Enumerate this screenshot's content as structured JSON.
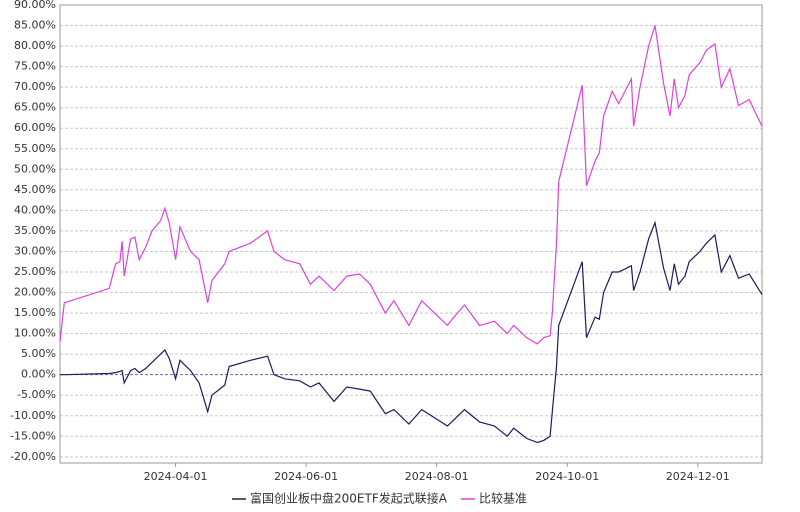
{
  "chart_data": {
    "type": "line",
    "x": [
      "2024-02-07",
      "2024-02-09",
      "2024-03-01",
      "2024-03-04",
      "2024-03-06",
      "2024-03-07",
      "2024-03-08",
      "2024-03-11",
      "2024-03-13",
      "2024-03-15",
      "2024-03-18",
      "2024-03-21",
      "2024-03-25",
      "2024-03-27",
      "2024-03-29",
      "2024-04-01",
      "2024-04-03",
      "2024-04-08",
      "2024-04-12",
      "2024-04-16",
      "2024-04-18",
      "2024-04-24",
      "2024-04-26",
      "2024-05-06",
      "2024-05-14",
      "2024-05-17",
      "2024-05-22",
      "2024-05-29",
      "2024-06-03",
      "2024-06-07",
      "2024-06-14",
      "2024-06-20",
      "2024-06-26",
      "2024-07-01",
      "2024-07-08",
      "2024-07-12",
      "2024-07-19",
      "2024-07-25",
      "2024-07-31",
      "2024-08-06",
      "2024-08-09",
      "2024-08-14",
      "2024-08-21",
      "2024-08-28",
      "2024-09-03",
      "2024-09-06",
      "2024-09-12",
      "2024-09-17",
      "2024-09-20",
      "2024-09-23",
      "2024-09-24",
      "2024-09-26",
      "2024-09-27",
      "2024-10-08",
      "2024-10-10",
      "2024-10-14",
      "2024-10-16",
      "2024-10-18",
      "2024-10-22",
      "2024-10-25",
      "2024-10-31",
      "2024-11-01",
      "2024-11-04",
      "2024-11-08",
      "2024-11-11",
      "2024-11-15",
      "2024-11-18",
      "2024-11-20",
      "2024-11-22",
      "2024-11-25",
      "2024-11-27",
      "2024-12-02",
      "2024-12-05",
      "2024-12-09",
      "2024-12-12",
      "2024-12-16",
      "2024-12-20",
      "2024-12-25",
      "2024-12-31"
    ],
    "series": [
      {
        "name": "富国创业板中盘200ETF发起式联接A",
        "color": "#1c1c5a",
        "values": [
          0,
          0,
          0.3,
          0.5,
          0.8,
          1,
          -2,
          1,
          1.5,
          0.5,
          1.5,
          3,
          5,
          6,
          4,
          -1,
          3.5,
          1,
          -2,
          -9,
          -5,
          -2.5,
          2,
          3.5,
          4.5,
          0,
          -1,
          -1.5,
          -3,
          -2,
          -6.5,
          -3,
          -3.5,
          -4,
          -9.5,
          -8.5,
          -12,
          -8.5,
          -10.5,
          -12.5,
          -11,
          -8.5,
          -11.5,
          -12.5,
          -15,
          -13,
          -15.5,
          -16.5,
          -16,
          -15,
          -9,
          2,
          12,
          27.5,
          9,
          14,
          13.5,
          20,
          25,
          25,
          26.5,
          20.5,
          25,
          33,
          37,
          26,
          20.5,
          27,
          22,
          24,
          27.5,
          30,
          32,
          34,
          25,
          29,
          23.5,
          24.5,
          19.5
        ]
      },
      {
        "name": "比较基准",
        "color": "#e040e0",
        "values": [
          8,
          17.5,
          21,
          27,
          27.5,
          32.5,
          24,
          33,
          33.5,
          28,
          31,
          35,
          37.5,
          40.5,
          37,
          28,
          36,
          30,
          28,
          17.5,
          23,
          27,
          30,
          32,
          35,
          30,
          28,
          27,
          22,
          24,
          20.5,
          24,
          24.5,
          22,
          15,
          18,
          12,
          18,
          15,
          12,
          14,
          17,
          12,
          13,
          10,
          12,
          9,
          7.5,
          9,
          9.5,
          15,
          32,
          47,
          70.5,
          46,
          52,
          54,
          63,
          69,
          66,
          72,
          60.5,
          70,
          80,
          85,
          71,
          63,
          72,
          65,
          68,
          73,
          76,
          79,
          80.5,
          70,
          74.5,
          65.5,
          67,
          60.5
        ]
      }
    ],
    "xlim": [
      "2024-02-07",
      "2024-12-31"
    ],
    "xticks": [
      "2024-04-01",
      "2024-06-01",
      "2024-08-01",
      "2024-10-01",
      "2024-12-01"
    ],
    "ylim": [
      -21.5,
      90
    ],
    "yticks": [
      {
        "value": 90,
        "label": "90.00%"
      },
      {
        "value": 85,
        "label": "85.00%"
      },
      {
        "value": 80,
        "label": "80.00%"
      },
      {
        "value": 75,
        "label": "75.00%"
      },
      {
        "value": 70,
        "label": "70.00%"
      },
      {
        "value": 65,
        "label": "65.00%"
      },
      {
        "value": 60,
        "label": "60.00%"
      },
      {
        "value": 55,
        "label": "55.00%"
      },
      {
        "value": 50,
        "label": "50.00%"
      },
      {
        "value": 45,
        "label": "45.00%"
      },
      {
        "value": 40,
        "label": "40.00%"
      },
      {
        "value": 35,
        "label": "35.00%"
      },
      {
        "value": 30,
        "label": "30.00%"
      },
      {
        "value": 25,
        "label": "25.00%"
      },
      {
        "value": 20,
        "label": "20.00%"
      },
      {
        "value": 15,
        "label": "15.00%"
      },
      {
        "value": 10,
        "label": "10.00%"
      },
      {
        "value": 5,
        "label": "5.00%"
      },
      {
        "value": 0,
        "label": "0.00%"
      },
      {
        "value": -5,
        "label": "-5.00%"
      },
      {
        "value": -10,
        "label": "-10.00%"
      },
      {
        "value": -15,
        "label": "-15.00%"
      },
      {
        "value": -20,
        "label": "-20.00%"
      }
    ],
    "grid": true
  }
}
